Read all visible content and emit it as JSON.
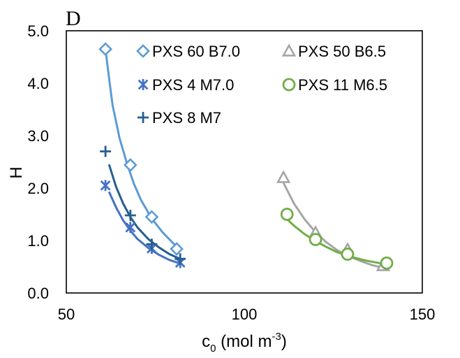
{
  "chart_data": {
    "type": "scatter",
    "panel_label": "D",
    "xlabel": "c",
    "xlabel_sub": "0",
    "xlabel_unit": " (mol m",
    "xlabel_sup": "-3",
    "xlabel_close": ")",
    "ylabel": "H",
    "xlim": [
      50,
      150
    ],
    "ylim": [
      0,
      5
    ],
    "x_ticks": [
      "50",
      "100",
      "150"
    ],
    "y_ticks": [
      "0.0",
      "1.0",
      "2.0",
      "3.0",
      "4.0",
      "5.0"
    ],
    "grid": false,
    "legend_position": "top",
    "series": [
      {
        "name": "PXS 60 B7.0",
        "marker": "diamond",
        "color": "#5b9bd5",
        "points": [
          [
            61,
            4.65
          ],
          [
            68,
            2.44
          ],
          [
            74,
            1.45
          ],
          [
            81,
            0.84
          ]
        ],
        "trend": [
          [
            61,
            4.65
          ],
          [
            62,
            4.1
          ],
          [
            63,
            3.58
          ],
          [
            65,
            2.94
          ],
          [
            67,
            2.48
          ],
          [
            69,
            2.08
          ],
          [
            71,
            1.77
          ],
          [
            74,
            1.42
          ],
          [
            77,
            1.16
          ],
          [
            80,
            0.95
          ],
          [
            82,
            0.83
          ]
        ]
      },
      {
        "name": "PXS 50 B6.5",
        "marker": "triangle",
        "color": "#a5a5a5",
        "points": [
          [
            111,
            2.2
          ],
          [
            120,
            1.15
          ],
          [
            129,
            0.83
          ],
          [
            139,
            0.52
          ]
        ],
        "trend": [
          [
            111,
            2.1
          ],
          [
            114,
            1.7
          ],
          [
            117,
            1.4
          ],
          [
            120,
            1.16
          ],
          [
            123,
            0.97
          ],
          [
            126,
            0.82
          ],
          [
            129,
            0.71
          ],
          [
            133,
            0.6
          ],
          [
            136,
            0.53
          ],
          [
            139,
            0.48
          ]
        ]
      },
      {
        "name": "PXS 4 M7.0",
        "marker": "star",
        "color": "#4472c4",
        "points": [
          [
            61,
            2.05
          ],
          [
            68,
            1.25
          ],
          [
            74,
            0.85
          ],
          [
            82,
            0.58
          ]
        ],
        "trend": [
          [
            62,
            1.93
          ],
          [
            64,
            1.63
          ],
          [
            66,
            1.38
          ],
          [
            68,
            1.19
          ],
          [
            70,
            1.03
          ],
          [
            73,
            0.86
          ],
          [
            76,
            0.73
          ],
          [
            79,
            0.63
          ],
          [
            82,
            0.56
          ]
        ]
      },
      {
        "name": "PXS 11 M6.5",
        "marker": "circle",
        "color": "#70ad47",
        "points": [
          [
            112,
            1.5
          ],
          [
            120,
            1.02
          ],
          [
            129,
            0.74
          ],
          [
            140,
            0.57
          ]
        ],
        "trend": [
          [
            111,
            1.47
          ],
          [
            114,
            1.28
          ],
          [
            117,
            1.12
          ],
          [
            120,
            0.99
          ],
          [
            123,
            0.88
          ],
          [
            126,
            0.78
          ],
          [
            130,
            0.69
          ],
          [
            134,
            0.62
          ],
          [
            138,
            0.57
          ],
          [
            140,
            0.55
          ]
        ]
      },
      {
        "name": "PXS 8 M7",
        "marker": "plus",
        "color": "#255e91",
        "points": [
          [
            61,
            2.7
          ],
          [
            68,
            1.48
          ],
          [
            74,
            0.93
          ],
          [
            82,
            0.65
          ]
        ],
        "trend": [
          [
            62,
            2.45
          ],
          [
            64,
            2.02
          ],
          [
            66,
            1.7
          ],
          [
            68,
            1.45
          ],
          [
            70,
            1.25
          ],
          [
            73,
            1.03
          ],
          [
            76,
            0.87
          ],
          [
            79,
            0.74
          ],
          [
            82,
            0.65
          ]
        ]
      }
    ]
  }
}
